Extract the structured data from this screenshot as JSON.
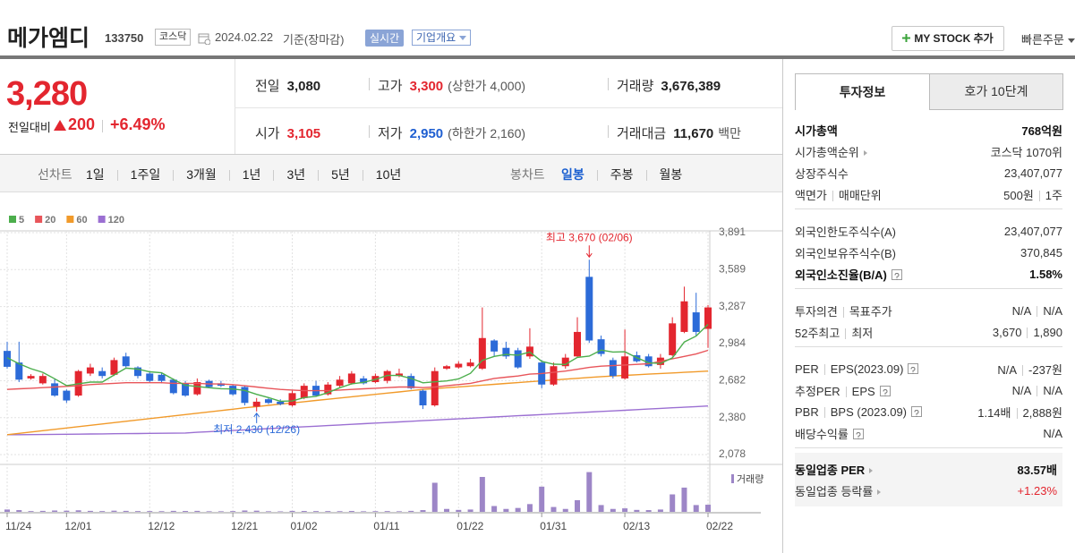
{
  "header": {
    "name": "메가엠디",
    "code": "133750",
    "market": "코스닥",
    "date": "2024.02.22",
    "basis": "기준(장마감)",
    "realtime": "실시간",
    "company_info": "기업개요",
    "my_stock": "MY STOCK 추가",
    "quick_order": "빠른주문"
  },
  "quote": {
    "price": "3,280",
    "change_label": "전일대비",
    "change": "200",
    "change_rate": "+6.49%",
    "cells": [
      [
        {
          "label": "전일",
          "value": "3,080"
        },
        {
          "label": "고가",
          "value": "3,300",
          "color": "red",
          "extra": "(상한가 4,000)"
        },
        {
          "label": "거래량",
          "value": "3,676,389"
        }
      ],
      [
        {
          "label": "시가",
          "value": "3,105",
          "color": "red"
        },
        {
          "label": "저가",
          "value": "2,950",
          "color": "blue",
          "extra": "(하한가 2,160)"
        },
        {
          "label": "거래대금",
          "value": "11,670",
          "extra": "백만"
        }
      ]
    ]
  },
  "periods": {
    "line_chart": "선차트",
    "line_periods": [
      "1일",
      "1주일",
      "3개월",
      "1년",
      "3년",
      "5년",
      "10년"
    ],
    "candle_chart": "봉차트",
    "candle_periods": [
      "일봉",
      "주봉",
      "월봉"
    ],
    "selected_candle_period": 0
  },
  "chart_data": {
    "type": "candlestick",
    "categories": [
      "11/24",
      null,
      null,
      null,
      null,
      "12/01",
      null,
      null,
      null,
      null,
      null,
      null,
      "12/12",
      null,
      null,
      null,
      null,
      null,
      null,
      "12/21",
      null,
      null,
      null,
      null,
      "01/02",
      null,
      null,
      null,
      null,
      null,
      null,
      "01/11",
      null,
      null,
      null,
      null,
      null,
      null,
      "01/22",
      null,
      null,
      null,
      null,
      null,
      null,
      "01/31",
      null,
      null,
      null,
      null,
      null,
      null,
      "02/13",
      null,
      null,
      null,
      null,
      null,
      null,
      "02/22"
    ],
    "open": [
      2925,
      2830,
      2700,
      2660,
      2660,
      2600,
      2560,
      2740,
      2760,
      2730,
      2880,
      2790,
      2740,
      2730,
      2690,
      2660,
      2570,
      2680,
      2660,
      2640,
      2630,
      2470,
      2530,
      2510,
      2480,
      2540,
      2640,
      2570,
      2640,
      2660,
      2700,
      2670,
      2680,
      2720,
      2720,
      2600,
      2480,
      2780,
      2790,
      2800,
      2780,
      3010,
      2950,
      2930,
      2880,
      2830,
      2650,
      2800,
      2880,
      3530,
      3020,
      2850,
      2700,
      2890,
      2880,
      2810,
      2890,
      3080,
      3240,
      3105
    ],
    "high": [
      3000,
      3000,
      2735,
      2740,
      2700,
      2610,
      2770,
      2820,
      2790,
      2870,
      2910,
      2800,
      2760,
      2750,
      2700,
      2680,
      2700,
      2690,
      2680,
      2650,
      2640,
      2540,
      2540,
      2530,
      2600,
      2660,
      2680,
      2670,
      2720,
      2760,
      2720,
      2740,
      2770,
      2780,
      2740,
      2610,
      2790,
      2810,
      2840,
      2860,
      3280,
      3020,
      3000,
      2950,
      3110,
      2850,
      2830,
      2900,
      3200,
      3670,
      3050,
      2870,
      3100,
      2920,
      2900,
      2900,
      3200,
      3450,
      3400,
      3300
    ],
    "low": [
      2780,
      2670,
      2690,
      2650,
      2550,
      2500,
      2550,
      2720,
      2700,
      2720,
      2790,
      2700,
      2670,
      2660,
      2570,
      2550,
      2560,
      2620,
      2630,
      2560,
      2480,
      2430,
      2490,
      2480,
      2470,
      2530,
      2550,
      2560,
      2630,
      2650,
      2650,
      2660,
      2660,
      2710,
      2610,
      2450,
      2470,
      2770,
      2780,
      2790,
      2770,
      2880,
      2860,
      2780,
      2860,
      2620,
      2640,
      2780,
      2870,
      2990,
      2880,
      2700,
      2690,
      2830,
      2790,
      2780,
      2880,
      3070,
      3050,
      2950
    ],
    "close": [
      2795,
      2690,
      2720,
      2720,
      2560,
      2520,
      2760,
      2790,
      2720,
      2850,
      2800,
      2720,
      2680,
      2680,
      2580,
      2560,
      2670,
      2630,
      2640,
      2570,
      2500,
      2510,
      2500,
      2490,
      2580,
      2640,
      2560,
      2650,
      2690,
      2740,
      2660,
      2720,
      2760,
      2740,
      2620,
      2480,
      2760,
      2800,
      2820,
      2830,
      3030,
      2920,
      2880,
      2790,
      2960,
      2650,
      2800,
      2870,
      3080,
      3010,
      2900,
      2720,
      2880,
      2840,
      2800,
      2870,
      3150,
      3330,
      3080,
      3280
    ],
    "up_color": "#e3262f",
    "down_color": "#2c6bd8",
    "ylim": [
      2078,
      3891
    ],
    "yticks": [
      {
        "value": 3891,
        "label": "3,891"
      },
      {
        "value": 3589,
        "label": "3,589"
      },
      {
        "value": 3287,
        "label": "3,287"
      },
      {
        "value": 2984,
        "label": "2,984"
      },
      {
        "value": 2682,
        "label": "2,682"
      },
      {
        "value": 2380,
        "label": "2,380"
      },
      {
        "value": 2078,
        "label": "2,078"
      }
    ],
    "grid": true,
    "moving_averages": [
      {
        "name": "5",
        "color": "#4cae4c",
        "values": [
          2870,
          2820,
          2780,
          2750,
          2697,
          2642,
          2656,
          2670,
          2670,
          2728,
          2784,
          2776,
          2754,
          2746,
          2692,
          2644,
          2634,
          2624,
          2616,
          2614,
          2602,
          2570,
          2544,
          2514,
          2516,
          2544,
          2554,
          2584,
          2624,
          2656,
          2668,
          2692,
          2724,
          2724,
          2700,
          2664,
          2672,
          2680,
          2696,
          2742,
          2848,
          2880,
          2896,
          2890,
          2916,
          2840,
          2816,
          2814,
          2872,
          2882,
          2932,
          2916,
          2918,
          2870,
          2828,
          2822,
          2868,
          2998,
          3046,
          3142
        ]
      },
      {
        "name": "20",
        "color": "#e8555a",
        "values": [
          2610,
          2615,
          2620,
          2625,
          2630,
          2635,
          2640,
          2650,
          2655,
          2660,
          2665,
          2665,
          2665,
          2665,
          2660,
          2660,
          2660,
          2655,
          2655,
          2650,
          2640,
          2630,
          2620,
          2610,
          2605,
          2600,
          2600,
          2600,
          2605,
          2610,
          2615,
          2620,
          2625,
          2630,
          2630,
          2625,
          2630,
          2640,
          2650,
          2660,
          2680,
          2700,
          2710,
          2720,
          2735,
          2740,
          2750,
          2760,
          2775,
          2790,
          2800,
          2805,
          2810,
          2815,
          2820,
          2840,
          2860,
          2880,
          2900,
          2930
        ]
      },
      {
        "name": "60",
        "color": "#f19a2a",
        "values": [
          2240,
          2251,
          2262,
          2273,
          2284,
          2295,
          2306,
          2317,
          2328,
          2339,
          2350,
          2361,
          2372,
          2383,
          2394,
          2405,
          2416,
          2427,
          2438,
          2449,
          2460,
          2470,
          2480,
          2490,
          2500,
          2510,
          2520,
          2530,
          2540,
          2550,
          2560,
          2570,
          2580,
          2590,
          2600,
          2610,
          2617,
          2624,
          2631,
          2638,
          2645,
          2652,
          2659,
          2666,
          2673,
          2680,
          2687,
          2694,
          2701,
          2708,
          2715,
          2720,
          2725,
          2730,
          2735,
          2740,
          2745,
          2750,
          2755,
          2760
        ]
      },
      {
        "name": "120",
        "color": "#9b6fd2",
        "values": [
          2240,
          2240,
          2241,
          2242,
          2243,
          2244,
          2245,
          2246,
          2247,
          2248,
          2249,
          2250,
          2251,
          2252,
          2253,
          2254,
          2260,
          2265,
          2270,
          2275,
          2280,
          2285,
          2290,
          2295,
          2300,
          2305,
          2310,
          2315,
          2320,
          2325,
          2330,
          2335,
          2340,
          2345,
          2350,
          2355,
          2360,
          2365,
          2370,
          2375,
          2380,
          2385,
          2390,
          2395,
          2400,
          2405,
          2410,
          2415,
          2420,
          2425,
          2430,
          2435,
          2440,
          2445,
          2450,
          2455,
          2460,
          2465,
          2470,
          2475
        ]
      }
    ],
    "volume": {
      "name": "거래량",
      "color": "#9d86c7",
      "ylim": [
        0,
        24000000
      ],
      "values": [
        1200000,
        900000,
        400000,
        500000,
        700000,
        600000,
        800000,
        500000,
        400000,
        600000,
        500000,
        400000,
        400000,
        350000,
        500000,
        450000,
        500000,
        300000,
        300000,
        400000,
        700000,
        600000,
        300000,
        250000,
        500000,
        450000,
        400000,
        400000,
        350000,
        450000,
        300000,
        350000,
        400000,
        300000,
        500000,
        900000,
        15000000,
        1500000,
        1000000,
        1200000,
        18000000,
        3000000,
        1500000,
        2000000,
        4000000,
        13000000,
        2500000,
        1500000,
        6000000,
        20500000,
        3500000,
        1500000,
        1800000,
        1000000,
        900000,
        1200000,
        9000000,
        12500000,
        3500000,
        3676389
      ]
    },
    "high_label": "최고 3,670 (02/06)",
    "low_label": "최저 2,430 (12/26)"
  },
  "investment_info": {
    "tabs": [
      "투자정보",
      "호가 10단계"
    ],
    "groups": [
      [
        {
          "label": [
            "시가총액"
          ],
          "value": [
            "768억원"
          ],
          "bold": true
        },
        {
          "label": [
            "시가총액순위"
          ],
          "arrow": true,
          "value": [
            "코스닥 1070위"
          ]
        },
        {
          "label": [
            "상장주식수"
          ],
          "value": [
            "23,407,077"
          ]
        },
        {
          "label": [
            "액면가",
            "매매단위"
          ],
          "value": [
            "500원",
            "1주"
          ]
        }
      ],
      [
        {
          "label": [
            "외국인한도주식수(A)"
          ],
          "value": [
            "23,407,077"
          ]
        },
        {
          "label": [
            "외국인보유주식수(B)"
          ],
          "value": [
            "370,845"
          ]
        },
        {
          "label": [
            "외국인소진율(B/A)"
          ],
          "help": true,
          "value": [
            "1.58%"
          ],
          "bold": true
        }
      ],
      [
        {
          "label": [
            "투자의견",
            "목표주가"
          ],
          "value": [
            "N/A",
            "N/A"
          ]
        },
        {
          "label": [
            "52주최고",
            "최저"
          ],
          "value": [
            "3,670",
            "1,890"
          ]
        }
      ],
      [
        {
          "label": [
            "PER",
            "EPS(2023.09)"
          ],
          "help": true,
          "value": [
            "N/A",
            "-237원"
          ]
        },
        {
          "label": [
            "추정PER",
            "EPS"
          ],
          "help": true,
          "value": [
            "N/A",
            "N/A"
          ]
        },
        {
          "label": [
            "PBR",
            "BPS (2023.09)"
          ],
          "help": true,
          "value": [
            "1.14배",
            "2,888원"
          ]
        },
        {
          "label": [
            "배당수익률"
          ],
          "help": true,
          "value": [
            "N/A"
          ]
        }
      ]
    ],
    "industry": [
      {
        "label": [
          "동일업종 PER"
        ],
        "arrow": true,
        "value": [
          "83.57배"
        ],
        "bold": true
      },
      {
        "label": [
          "동일업종 등락률"
        ],
        "arrow": true,
        "value": [
          "+1.23%"
        ],
        "red": true
      }
    ]
  }
}
